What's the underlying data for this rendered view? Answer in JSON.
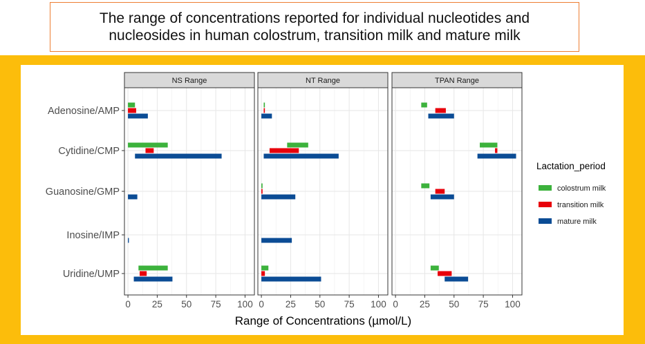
{
  "header": {
    "title_line1": "The range of concentrations reported for individual nucleotides and",
    "title_line2": "nucleosides in human colostrum, transition milk and mature milk"
  },
  "colors": {
    "colostrum": "#3cb23c",
    "transition": "#e8000b",
    "mature": "#0b4c95",
    "background_band": "#fcbd0b",
    "title_border": "#ed7d31",
    "strip_fill": "#d9d9d9"
  },
  "chart_data": {
    "type": "bar",
    "orientation": "horizontal",
    "subtype": "floating-range",
    "xlabel": "Range of Concentrations (µmol/L)",
    "ylabel": "",
    "xlim": [
      -3,
      108
    ],
    "x_ticks": [
      0,
      25,
      50,
      75,
      100
    ],
    "x_tick_labels": [
      "0",
      "25",
      "50",
      "75",
      "100"
    ],
    "categories": [
      "Adenosine/AMP",
      "Cytidine/CMP",
      "Guanosine/GMP",
      "Inosine/IMP",
      "Uridine/UMP"
    ],
    "legend": {
      "title": "Lactation_period",
      "position": "right",
      "entries": [
        "colostrum milk",
        "transition milk",
        "mature milk"
      ]
    },
    "grid": true,
    "panels": [
      {
        "title": "NS Range",
        "series": [
          {
            "name": "colostrum milk",
            "ranges": [
              [
                0,
                6
              ],
              [
                0,
                34
              ],
              null,
              null,
              [
                9,
                34
              ]
            ]
          },
          {
            "name": "transition milk",
            "ranges": [
              [
                0,
                7
              ],
              [
                15,
                22
              ],
              null,
              null,
              [
                10,
                16
              ]
            ]
          },
          {
            "name": "mature milk",
            "ranges": [
              [
                0,
                17
              ],
              [
                6,
                80
              ],
              [
                0,
                8
              ],
              [
                0,
                0.8
              ],
              [
                5,
                38
              ]
            ]
          }
        ]
      },
      {
        "title": "NT Range",
        "series": [
          {
            "name": "colostrum milk",
            "ranges": [
              [
                2,
                3
              ],
              [
                22,
                40
              ],
              [
                0,
                1
              ],
              null,
              [
                0,
                6
              ]
            ]
          },
          {
            "name": "transition milk",
            "ranges": [
              [
                2,
                3
              ],
              [
                7,
                32
              ],
              [
                0,
                1
              ],
              null,
              [
                0,
                3
              ]
            ]
          },
          {
            "name": "mature milk",
            "ranges": [
              [
                0,
                9
              ],
              [
                2,
                66
              ],
              [
                0,
                29
              ],
              [
                0,
                26
              ],
              [
                0,
                51
              ]
            ]
          }
        ]
      },
      {
        "title": "TPAN Range",
        "series": [
          {
            "name": "colostrum milk",
            "ranges": [
              [
                22,
                27
              ],
              [
                72,
                87
              ],
              [
                22,
                29
              ],
              null,
              [
                30,
                37
              ]
            ]
          },
          {
            "name": "transition milk",
            "ranges": [
              [
                34,
                43
              ],
              [
                85,
                87
              ],
              [
                34,
                42
              ],
              null,
              [
                36,
                48
              ]
            ]
          },
          {
            "name": "mature milk",
            "ranges": [
              [
                28,
                50
              ],
              [
                70,
                103
              ],
              [
                30,
                50
              ],
              null,
              [
                42,
                62
              ]
            ]
          }
        ]
      }
    ]
  }
}
